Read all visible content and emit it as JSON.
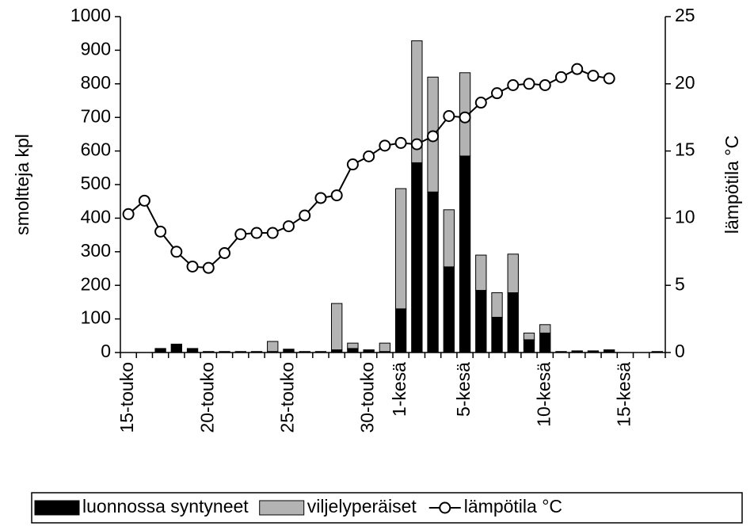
{
  "chart_data": {
    "type": "bar-line",
    "y_label": "smoltteja kpl",
    "y2_label": "lämpötila °C",
    "categories": [
      "15-touko",
      null,
      null,
      null,
      null,
      "20-touko",
      null,
      null,
      null,
      null,
      "25-touko",
      null,
      null,
      null,
      null,
      "30-touko",
      null,
      "1-kesä",
      null,
      null,
      null,
      "5-kesä",
      null,
      null,
      null,
      null,
      "10-kesä",
      null,
      null,
      null,
      null,
      "15-kesä",
      null,
      null
    ],
    "ylim": [
      0,
      1000
    ],
    "yticks": [
      0,
      100,
      200,
      300,
      400,
      500,
      600,
      700,
      800,
      900,
      1000
    ],
    "y2lim": [
      0,
      25
    ],
    "y2ticks": [
      0,
      5,
      10,
      15,
      20,
      25
    ],
    "stacked": true,
    "series": [
      {
        "name": "luonnossa syntyneet",
        "type": "bar",
        "color": "#000000",
        "values": [
          0,
          0,
          12,
          25,
          12,
          3,
          3,
          3,
          3,
          3,
          10,
          3,
          3,
          8,
          12,
          8,
          3,
          130,
          565,
          478,
          255,
          585,
          185,
          105,
          178,
          38,
          58,
          3,
          5,
          5,
          8,
          0,
          0,
          3
        ]
      },
      {
        "name": "viljelyperäiset",
        "type": "bar",
        "color": "#b3b3b3",
        "values": [
          0,
          0,
          0,
          0,
          0,
          0,
          0,
          0,
          0,
          30,
          0,
          0,
          0,
          138,
          16,
          0,
          25,
          358,
          363,
          342,
          170,
          248,
          105,
          73,
          115,
          20,
          25,
          0,
          0,
          0,
          0,
          0,
          0,
          0
        ]
      },
      {
        "name": "lämpötila °C",
        "type": "line",
        "axis": "y2",
        "color": "#000000",
        "values": [
          10.3,
          11.3,
          9.0,
          7.5,
          6.4,
          6.3,
          7.4,
          8.8,
          8.9,
          8.9,
          9.4,
          10.2,
          11.5,
          11.7,
          14.0,
          14.6,
          15.4,
          15.6,
          15.5,
          16.1,
          17.6,
          17.5,
          18.6,
          19.3,
          19.9,
          20.0,
          19.9,
          20.5,
          21.1,
          20.6,
          20.4,
          null,
          null,
          null
        ]
      }
    ]
  }
}
